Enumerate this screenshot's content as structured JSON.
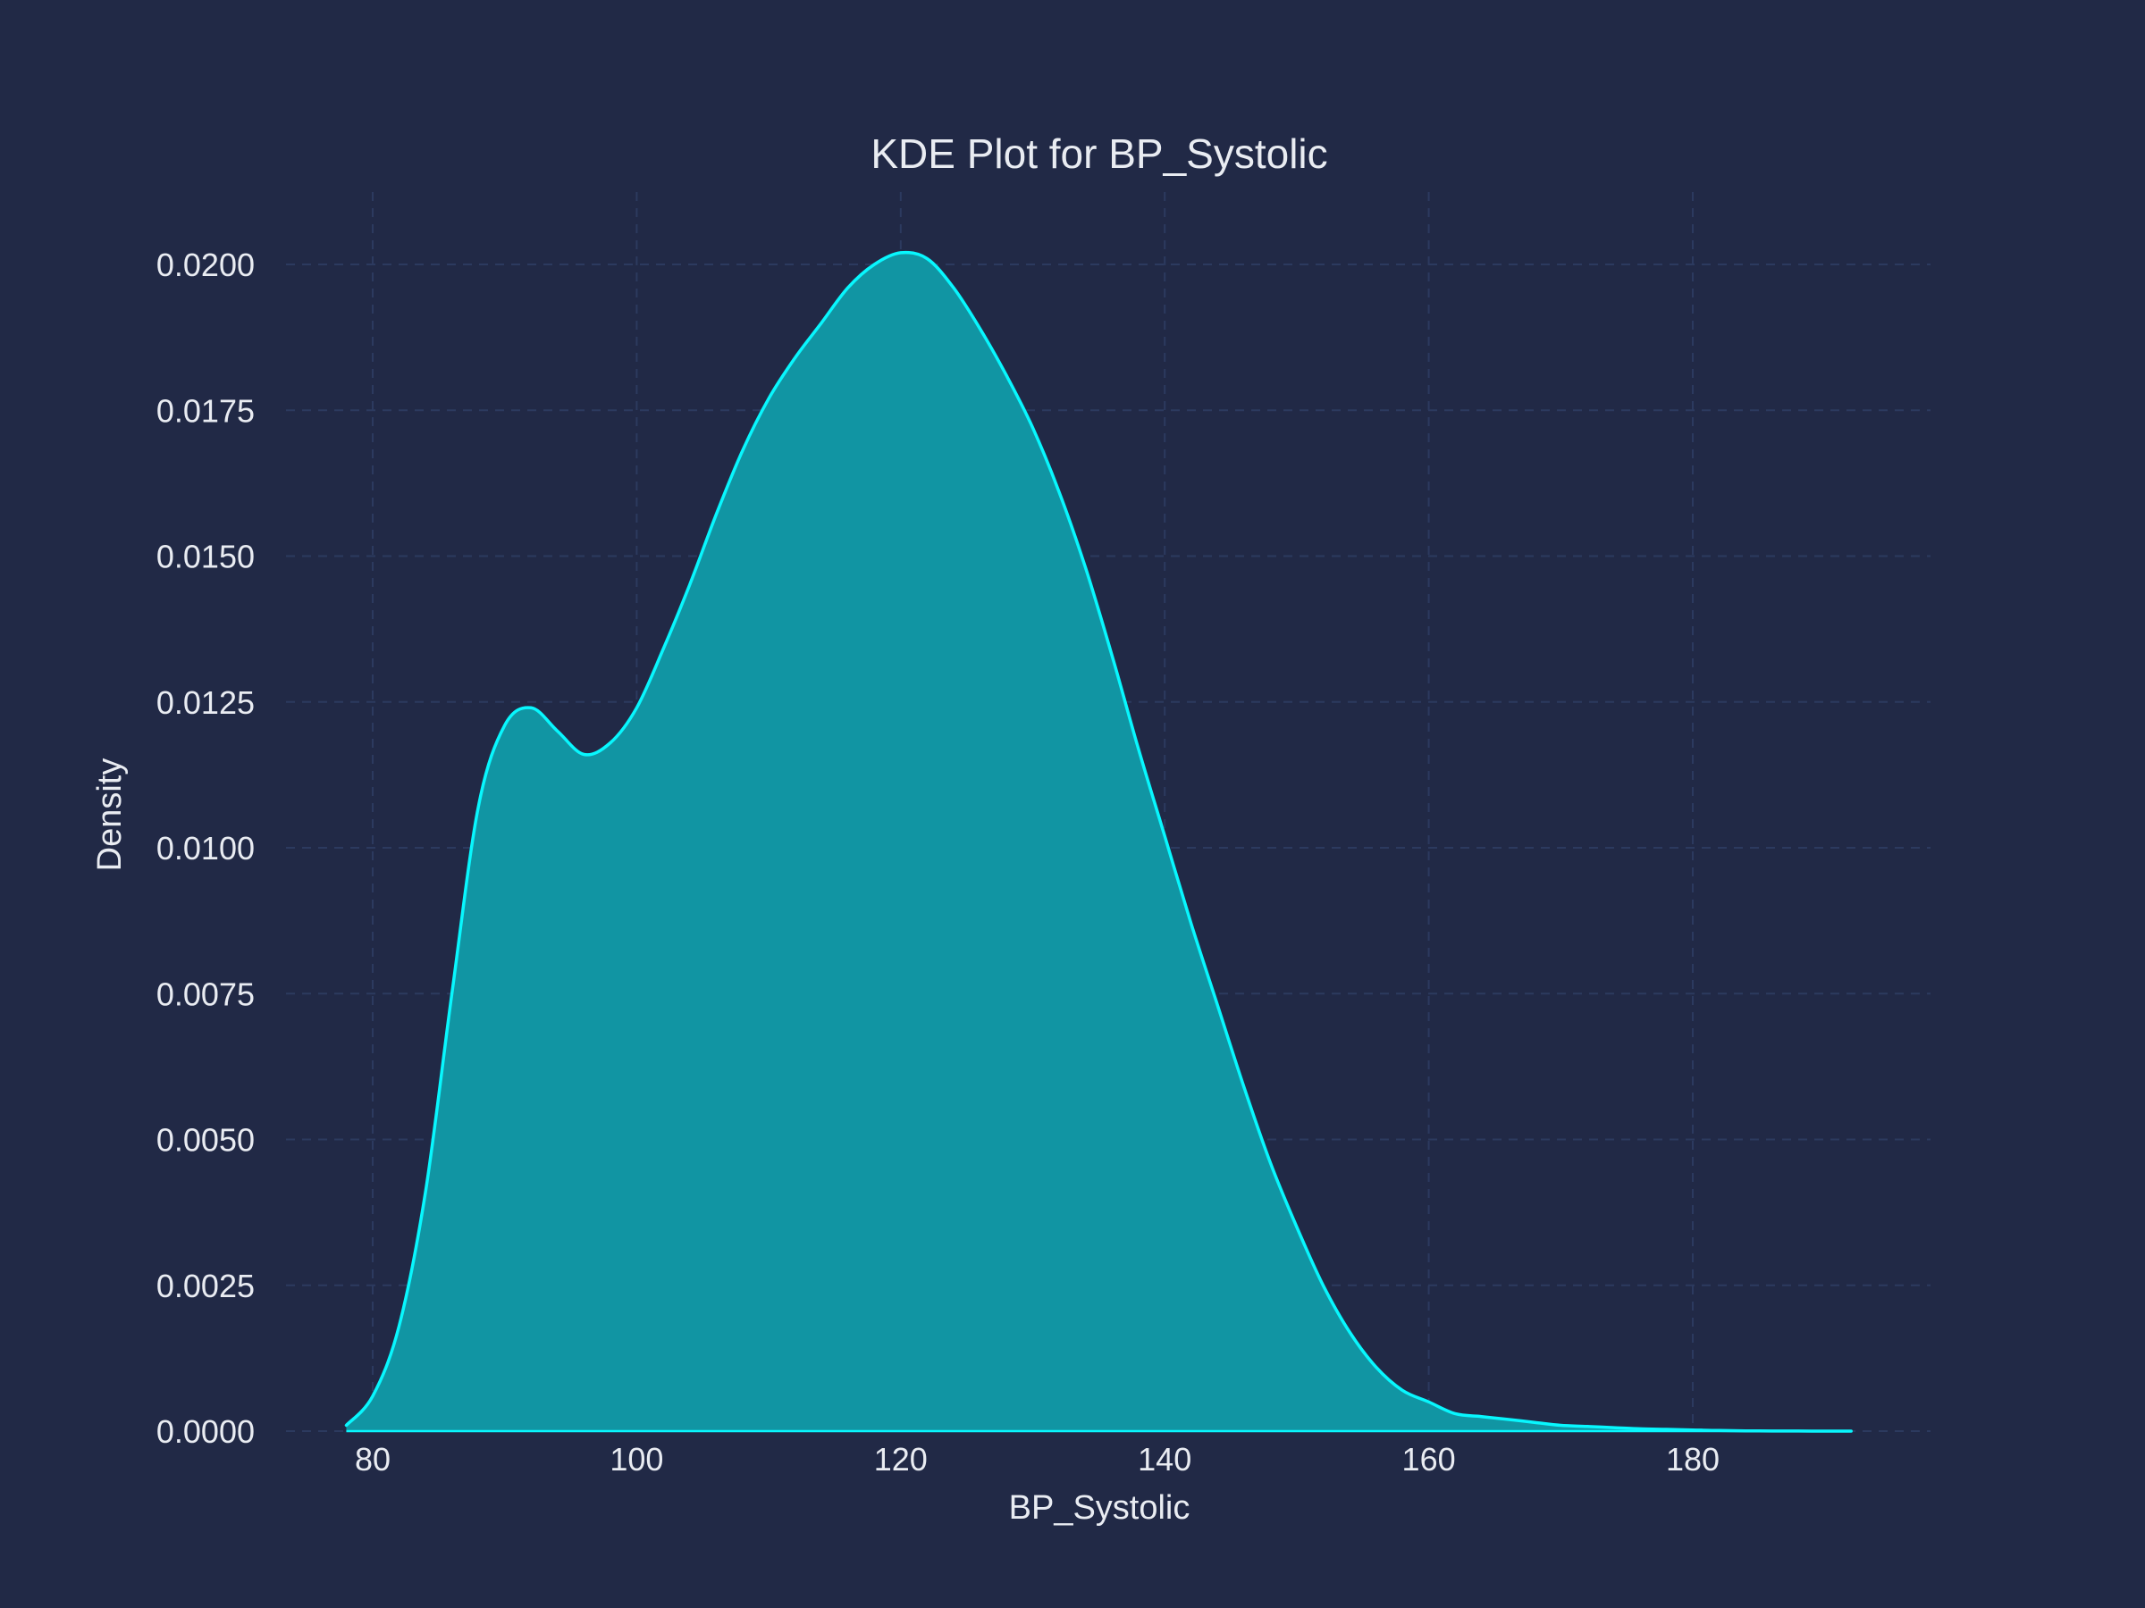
{
  "colors": {
    "background": "#212946",
    "fill": "#1195a3",
    "line": "#08f7fe",
    "grid": "#2c3a5f",
    "text": "#e9ecf2"
  },
  "chart_data": {
    "type": "area",
    "title": "KDE Plot for BP_Systolic",
    "xlabel": "BP_Systolic",
    "ylabel": "Density",
    "xlim": [
      75,
      195
    ],
    "ylim": [
      0,
      0.0212
    ],
    "x_ticks": [
      80,
      100,
      120,
      140,
      160,
      180
    ],
    "x_tick_labels": [
      "80",
      "100",
      "120",
      "140",
      "160",
      "180"
    ],
    "y_ticks": [
      0,
      0.0025,
      0.005,
      0.0075,
      0.01,
      0.0125,
      0.015,
      0.0175,
      0.02
    ],
    "y_tick_labels": [
      "0.0000",
      "0.0025",
      "0.0050",
      "0.0075",
      "0.0100",
      "0.0125",
      "0.0150",
      "0.0175",
      "0.0200"
    ],
    "grid": true,
    "series": [
      {
        "x": [
          78,
          80,
          82,
          84,
          86,
          88,
          90,
          92,
          94,
          96,
          98,
          100,
          102,
          104,
          106,
          108,
          110,
          112,
          114,
          116,
          118,
          120,
          122,
          124,
          126,
          128,
          130,
          132,
          134,
          136,
          138,
          140,
          142,
          144,
          146,
          148,
          150,
          152,
          154,
          156,
          158,
          160,
          162,
          164,
          166,
          168,
          170,
          172,
          174,
          176,
          178,
          180,
          182,
          184,
          186,
          188,
          190,
          192
        ],
        "y": [
          0.0001,
          0.0006,
          0.0018,
          0.0041,
          0.0075,
          0.0107,
          0.0121,
          0.0124,
          0.012,
          0.0116,
          0.0118,
          0.0124,
          0.0134,
          0.0145,
          0.0157,
          0.0168,
          0.0177,
          0.0184,
          0.019,
          0.0196,
          0.02,
          0.0202,
          0.0201,
          0.0196,
          0.0189,
          0.0181,
          0.0172,
          0.0161,
          0.0148,
          0.0133,
          0.0117,
          0.0102,
          0.0087,
          0.0073,
          0.0059,
          0.0046,
          0.0035,
          0.0025,
          0.0017,
          0.0011,
          0.0007,
          0.0005,
          0.0003,
          0.00025,
          0.0002,
          0.00015,
          0.0001,
          8e-05,
          6e-05,
          4e-05,
          3e-05,
          2e-05,
          1e-05,
          5e-06,
          2e-06,
          1e-06,
          5e-07,
          0
        ]
      }
    ]
  }
}
